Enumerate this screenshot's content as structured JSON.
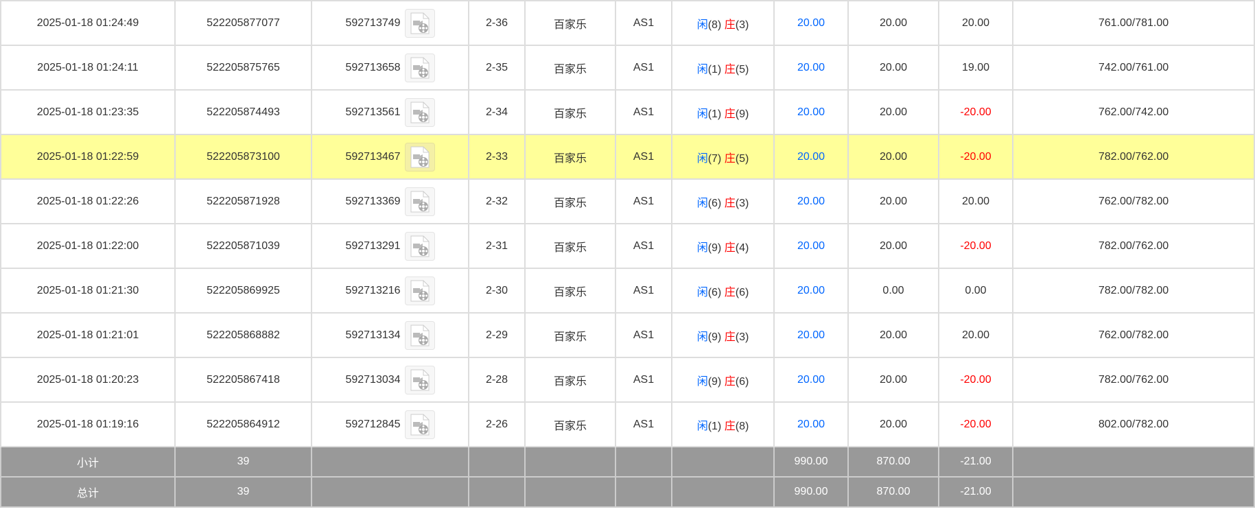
{
  "colors": {
    "player": "#0066ff",
    "banker": "#ff0000",
    "highlight": "#ffff99",
    "summary_bg": "#999999"
  },
  "rows": [
    {
      "time": "2025-01-18 01:24:49",
      "order": "522205877077",
      "round": "592713749",
      "shoe": "2-36",
      "game": "百家乐",
      "table": "AS1",
      "p_label": "闲",
      "p": "(8)",
      "b_label": "庄",
      "b": "(3)",
      "bet": "20.00",
      "valid": "20.00",
      "win": "20.00",
      "win_neg": false,
      "balance": "761.00/781.00",
      "highlight": false
    },
    {
      "time": "2025-01-18 01:24:11",
      "order": "522205875765",
      "round": "592713658",
      "shoe": "2-35",
      "game": "百家乐",
      "table": "AS1",
      "p_label": "闲",
      "p": "(1)",
      "b_label": "庄",
      "b": "(5)",
      "bet": "20.00",
      "valid": "20.00",
      "win": "19.00",
      "win_neg": false,
      "balance": "742.00/761.00",
      "highlight": false
    },
    {
      "time": "2025-01-18 01:23:35",
      "order": "522205874493",
      "round": "592713561",
      "shoe": "2-34",
      "game": "百家乐",
      "table": "AS1",
      "p_label": "闲",
      "p": "(1)",
      "b_label": "庄",
      "b": "(9)",
      "bet": "20.00",
      "valid": "20.00",
      "win": "-20.00",
      "win_neg": true,
      "balance": "762.00/742.00",
      "highlight": false
    },
    {
      "time": "2025-01-18 01:22:59",
      "order": "522205873100",
      "round": "592713467",
      "shoe": "2-33",
      "game": "百家乐",
      "table": "AS1",
      "p_label": "闲",
      "p": "(7)",
      "b_label": "庄",
      "b": "(5)",
      "bet": "20.00",
      "valid": "20.00",
      "win": "-20.00",
      "win_neg": true,
      "balance": "782.00/762.00",
      "highlight": true
    },
    {
      "time": "2025-01-18 01:22:26",
      "order": "522205871928",
      "round": "592713369",
      "shoe": "2-32",
      "game": "百家乐",
      "table": "AS1",
      "p_label": "闲",
      "p": "(6)",
      "b_label": "庄",
      "b": "(3)",
      "bet": "20.00",
      "valid": "20.00",
      "win": "20.00",
      "win_neg": false,
      "balance": "762.00/782.00",
      "highlight": false
    },
    {
      "time": "2025-01-18 01:22:00",
      "order": "522205871039",
      "round": "592713291",
      "shoe": "2-31",
      "game": "百家乐",
      "table": "AS1",
      "p_label": "闲",
      "p": "(9)",
      "b_label": "庄",
      "b": "(4)",
      "bet": "20.00",
      "valid": "20.00",
      "win": "-20.00",
      "win_neg": true,
      "balance": "782.00/762.00",
      "highlight": false
    },
    {
      "time": "2025-01-18 01:21:30",
      "order": "522205869925",
      "round": "592713216",
      "shoe": "2-30",
      "game": "百家乐",
      "table": "AS1",
      "p_label": "闲",
      "p": "(6)",
      "b_label": "庄",
      "b": "(6)",
      "bet": "20.00",
      "valid": "0.00",
      "win": "0.00",
      "win_neg": false,
      "balance": "782.00/782.00",
      "highlight": false
    },
    {
      "time": "2025-01-18 01:21:01",
      "order": "522205868882",
      "round": "592713134",
      "shoe": "2-29",
      "game": "百家乐",
      "table": "AS1",
      "p_label": "闲",
      "p": "(9)",
      "b_label": "庄",
      "b": "(3)",
      "bet": "20.00",
      "valid": "20.00",
      "win": "20.00",
      "win_neg": false,
      "balance": "762.00/782.00",
      "highlight": false
    },
    {
      "time": "2025-01-18 01:20:23",
      "order": "522205867418",
      "round": "592713034",
      "shoe": "2-28",
      "game": "百家乐",
      "table": "AS1",
      "p_label": "闲",
      "p": "(9)",
      "b_label": "庄",
      "b": "(6)",
      "bet": "20.00",
      "valid": "20.00",
      "win": "-20.00",
      "win_neg": true,
      "balance": "782.00/762.00",
      "highlight": false
    },
    {
      "time": "2025-01-18 01:19:16",
      "order": "522205864912",
      "round": "592712845",
      "shoe": "2-26",
      "game": "百家乐",
      "table": "AS1",
      "p_label": "闲",
      "p": "(1)",
      "b_label": "庄",
      "b": "(8)",
      "bet": "20.00",
      "valid": "20.00",
      "win": "-20.00",
      "win_neg": true,
      "balance": "802.00/782.00",
      "highlight": false
    }
  ],
  "subtotal": {
    "label": "小计",
    "count": "39",
    "bet": "990.00",
    "valid": "870.00",
    "win": "-21.00"
  },
  "total": {
    "label": "总计",
    "count": "39",
    "bet": "990.00",
    "valid": "870.00",
    "win": "-21.00"
  },
  "icons": {
    "replay": "video-file-icon"
  }
}
